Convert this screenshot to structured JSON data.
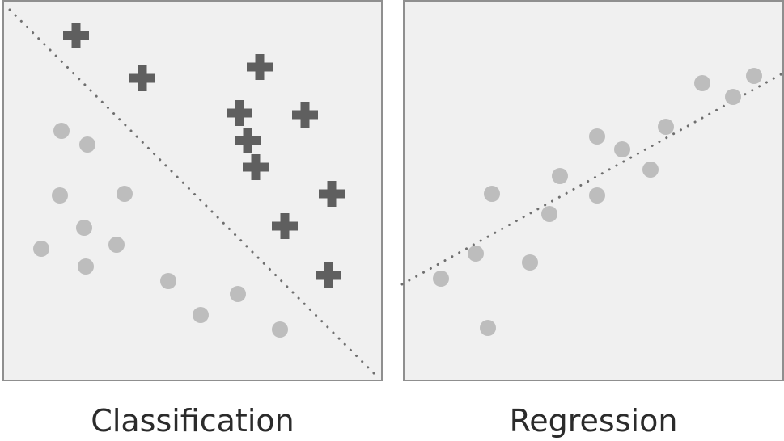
{
  "panels": [
    {
      "caption": "Classification",
      "kind": "classification"
    },
    {
      "caption": "Regression",
      "kind": "regression"
    }
  ],
  "colors": {
    "panel_bg": "#f0f0f0",
    "panel_border": "#8f8f8f",
    "plus_marker": "#5f5f5f",
    "circle_marker": "#bdbdbd",
    "boundary_line": "#6f6f6f",
    "caption_text": "#2b2b2b"
  },
  "icons": {
    "plus_marker": "plus-icon",
    "circle_marker": "circle-icon"
  }
}
